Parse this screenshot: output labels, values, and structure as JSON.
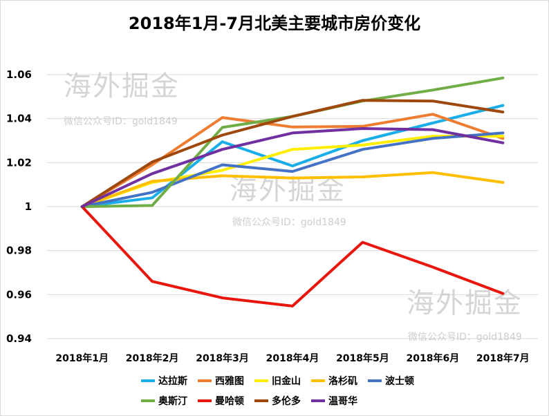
{
  "chart_data": {
    "type": "line",
    "title": "2018年1月-7月北美主要城市房价变化",
    "categories": [
      "2018年1月",
      "2018年2月",
      "2018年3月",
      "2018年4月",
      "2018年5月",
      "2018年6月",
      "2018年7月"
    ],
    "ylim": [
      0.94,
      1.06
    ],
    "yticks": [
      "0.94",
      "0.96",
      "0.98",
      "1",
      "1.02",
      "1.04",
      "1.06"
    ],
    "grid": true,
    "legend_position": "bottom",
    "series": [
      {
        "name": "达拉斯",
        "color": "#1aaee8",
        "values": [
          1.0,
          1.004,
          1.0295,
          1.0185,
          1.03,
          1.038,
          1.046
        ]
      },
      {
        "name": "西雅图",
        "color": "#ee7d31",
        "values": [
          1.0,
          1.019,
          1.0405,
          1.0362,
          1.0365,
          1.042,
          1.031
        ]
      },
      {
        "name": "旧金山",
        "color": "#ffee00",
        "values": [
          1.0,
          1.011,
          1.0165,
          1.026,
          1.028,
          1.032,
          1.032
        ]
      },
      {
        "name": "洛杉矶",
        "color": "#ffbf00",
        "values": [
          1.0,
          1.0115,
          1.014,
          1.013,
          1.0135,
          1.0155,
          1.011
        ]
      },
      {
        "name": "波士顿",
        "color": "#4472c4",
        "values": [
          1.0,
          1.0065,
          1.019,
          1.016,
          1.026,
          1.031,
          1.0335
        ]
      },
      {
        "name": "奥斯汀",
        "color": "#70ad47",
        "values": [
          1.0,
          1.0005,
          1.036,
          1.041,
          1.048,
          1.053,
          1.0585
        ]
      },
      {
        "name": "曼哈顿",
        "color": "#e8160c",
        "values": [
          1.0,
          0.966,
          0.9585,
          0.9548,
          0.9838,
          0.9725,
          0.9605
        ]
      },
      {
        "name": "多伦多",
        "color": "#9e480e",
        "values": [
          1.0,
          1.0203,
          1.0325,
          1.041,
          1.0483,
          1.048,
          1.043
        ]
      },
      {
        "name": "温哥华",
        "color": "#7030a0",
        "values": [
          1.0,
          1.015,
          1.026,
          1.0335,
          1.0355,
          1.035,
          1.029
        ]
      }
    ]
  },
  "watermarks": [
    {
      "main": "海外掘金",
      "sub": "微信公众号ID：gold1849"
    },
    {
      "main": "海外掘金",
      "sub": "微信公众号ID：gold1849"
    },
    {
      "main": "海外掘金",
      "sub": "微信公众号ID：gold1849"
    }
  ]
}
